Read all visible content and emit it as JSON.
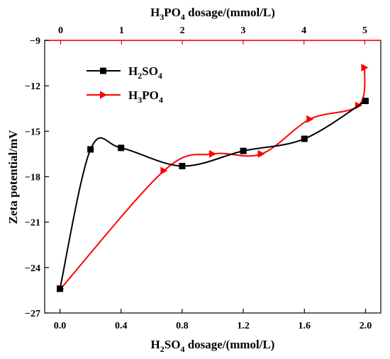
{
  "chart_data": {
    "type": "line",
    "xlabel": "H2SO4 dosage/(mmol/L)",
    "x2label": "H3PO4 dosage/(mmol/L)",
    "ylabel": "Zeta potential/mV",
    "xlim": [
      -0.1,
      2.1
    ],
    "x2lim": [
      -0.263,
      5.263
    ],
    "ylim": [
      -27,
      -9
    ],
    "x_ticks": [
      0.0,
      0.4,
      0.8,
      1.2,
      1.6,
      2.0
    ],
    "x_tick_labels": [
      "0.0",
      "0.4",
      "0.8",
      "1.2",
      "1.6",
      "2.0"
    ],
    "x2_ticks": [
      0,
      1,
      2,
      3,
      4,
      5
    ],
    "x2_tick_labels": [
      "0",
      "1",
      "2",
      "3",
      "4",
      "5"
    ],
    "y_ticks": [
      -27,
      -24,
      -21,
      -18,
      -15,
      -12,
      -9
    ],
    "y_tick_labels": [
      "−27",
      "−24",
      "−21",
      "−18",
      "−15",
      "−12",
      "−9"
    ],
    "legend_position": "top-left",
    "series": [
      {
        "name": "H2SO4",
        "axis": "bottom",
        "color": "#000000",
        "marker": "square",
        "x": [
          0.0,
          0.2,
          0.4,
          0.8,
          1.2,
          1.6,
          2.0
        ],
        "y": [
          -25.4,
          -16.2,
          -16.1,
          -17.3,
          -16.3,
          -15.5,
          -13.0
        ]
      },
      {
        "name": "H3PO4",
        "axis": "top",
        "color": "#ff0000",
        "marker": "triangle-right",
        "x": [
          0.0,
          1.7,
          2.5,
          3.3,
          4.1,
          4.9,
          5.0
        ],
        "y": [
          -25.4,
          -17.6,
          -16.5,
          -16.5,
          -14.2,
          -13.3,
          -10.8
        ]
      }
    ]
  }
}
